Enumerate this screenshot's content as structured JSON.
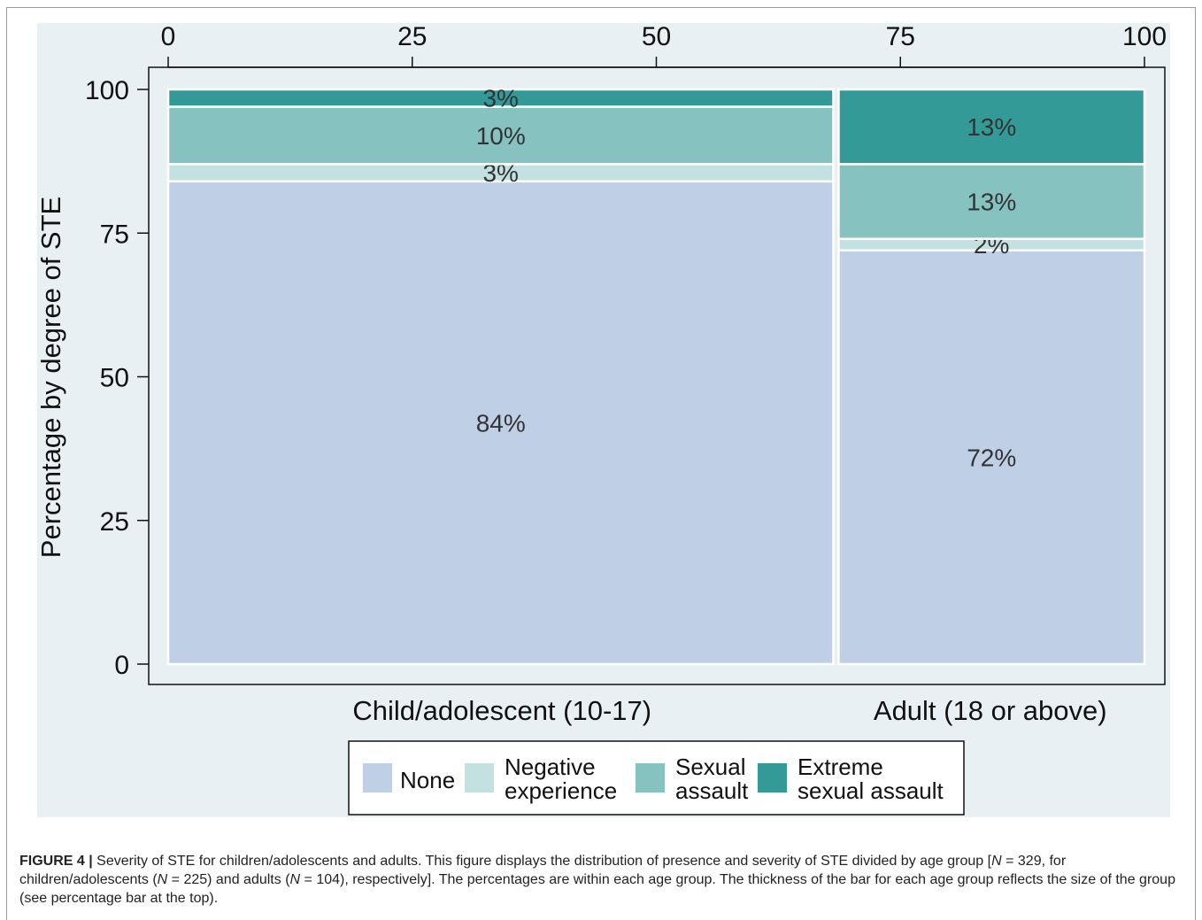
{
  "chart_data": {
    "type": "mosaic",
    "top_axis_ticks": [
      "0",
      "25",
      "50",
      "75",
      "100"
    ],
    "y_axis": {
      "label": "Percentage by degree of STE",
      "ticks": [
        "0",
        "25",
        "50",
        "75",
        "100"
      ],
      "ylim": [
        0,
        100
      ]
    },
    "groups": [
      {
        "name": "Child/adolescent (10-17)",
        "width_percent": 68.4,
        "segments": [
          {
            "category": "None",
            "value": 84,
            "label": "84%"
          },
          {
            "category": "Negative experience",
            "value": 3,
            "label": "3%"
          },
          {
            "category": "Sexual assault",
            "value": 10,
            "label": "10%"
          },
          {
            "category": "Extreme sexual assault",
            "value": 3,
            "label": "3%"
          }
        ]
      },
      {
        "name": "Adult (18 or above)",
        "width_percent": 31.6,
        "segments": [
          {
            "category": "None",
            "value": 72,
            "label": "72%"
          },
          {
            "category": "Negative experience",
            "value": 2,
            "label": "2%"
          },
          {
            "category": "Sexual assault",
            "value": 13,
            "label": "13%"
          },
          {
            "category": "Extreme sexual assault",
            "value": 13,
            "label": "13%"
          }
        ]
      }
    ],
    "legend": {
      "placement": "bottom",
      "items": [
        {
          "lines": [
            "None"
          ],
          "color": "#bfcfe5"
        },
        {
          "lines": [
            "Negative",
            "experience"
          ],
          "color": "#c3e1e0"
        },
        {
          "lines": [
            "Sexual",
            "assault"
          ],
          "color": "#86c2c0"
        },
        {
          "lines": [
            "Extreme",
            "sexual assault"
          ],
          "color": "#339a97"
        }
      ]
    },
    "colors": {
      "None": "#bfcfe5",
      "Negative experience": "#c3e1e0",
      "Sexual assault": "#86c2c0",
      "Extreme sexual assault": "#339a97",
      "background": "#e9f0f3"
    }
  },
  "caption": {
    "figure_label": "FIGURE 4 |",
    "text_1": " Severity of STE for children/adolescents and adults. This figure displays the distribution of presence and severity of STE divided by age group [",
    "n": "N",
    "text_2": " = 329, for children/adolescents (",
    "text_3": " = 225) and adults (",
    "text_4": " = 104), respectively]. The percentages are within each age group. The thickness of the bar for each age group reflects the size of the group (see percentage bar at the top)."
  }
}
